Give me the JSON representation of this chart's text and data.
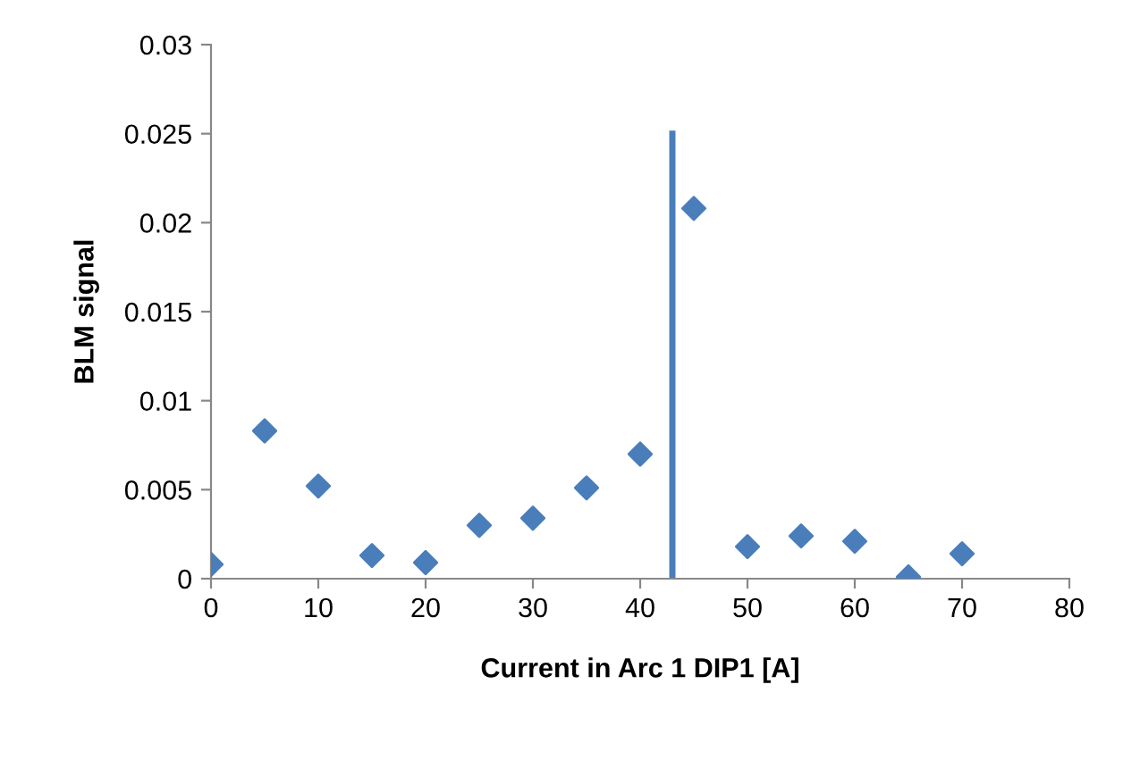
{
  "chart_data": {
    "type": "scatter",
    "xlabel": "Current in Arc 1 DIP1 [A]",
    "ylabel": "BLM signal",
    "x": [
      0,
      5,
      10,
      15,
      20,
      25,
      30,
      35,
      40,
      45,
      50,
      55,
      60,
      65,
      70
    ],
    "series": [
      {
        "color": "#4a7ebb",
        "marker": "diamond",
        "values": [
          0.0008,
          0.0083,
          0.0052,
          0.0013,
          0.0009,
          0.003,
          0.0034,
          0.0051,
          0.007,
          0.0208,
          0.0018,
          0.0024,
          0.0021,
          0.0001,
          0.0014
        ]
      },
      {
        "type": "line",
        "color": "#4a7ebb",
        "marker": "none",
        "x": [
          43,
          43
        ],
        "values": [
          0,
          0.025
        ]
      }
    ],
    "xlim": [
      0,
      80
    ],
    "xticks": [
      0,
      10,
      20,
      30,
      40,
      50,
      60,
      70,
      80
    ],
    "ylim": [
      0,
      0.03
    ],
    "yticks": [
      0,
      0.005,
      0.01,
      0.015,
      0.02,
      0.025,
      0.03
    ],
    "grid": false
  }
}
